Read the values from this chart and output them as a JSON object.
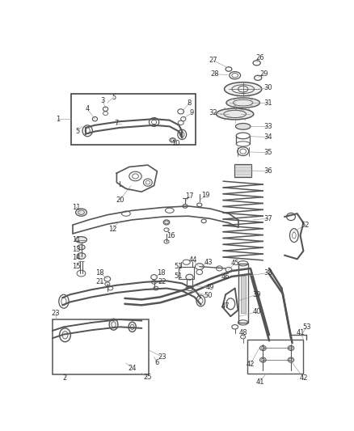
{
  "bg_color": "#ffffff",
  "line_color": "#555555",
  "dark_color": "#333333",
  "fig_width": 4.38,
  "fig_height": 5.33,
  "dpi": 100,
  "label_fs": 6.0,
  "lw_main": 1.0,
  "lw_thin": 0.6,
  "lw_thick": 1.4
}
